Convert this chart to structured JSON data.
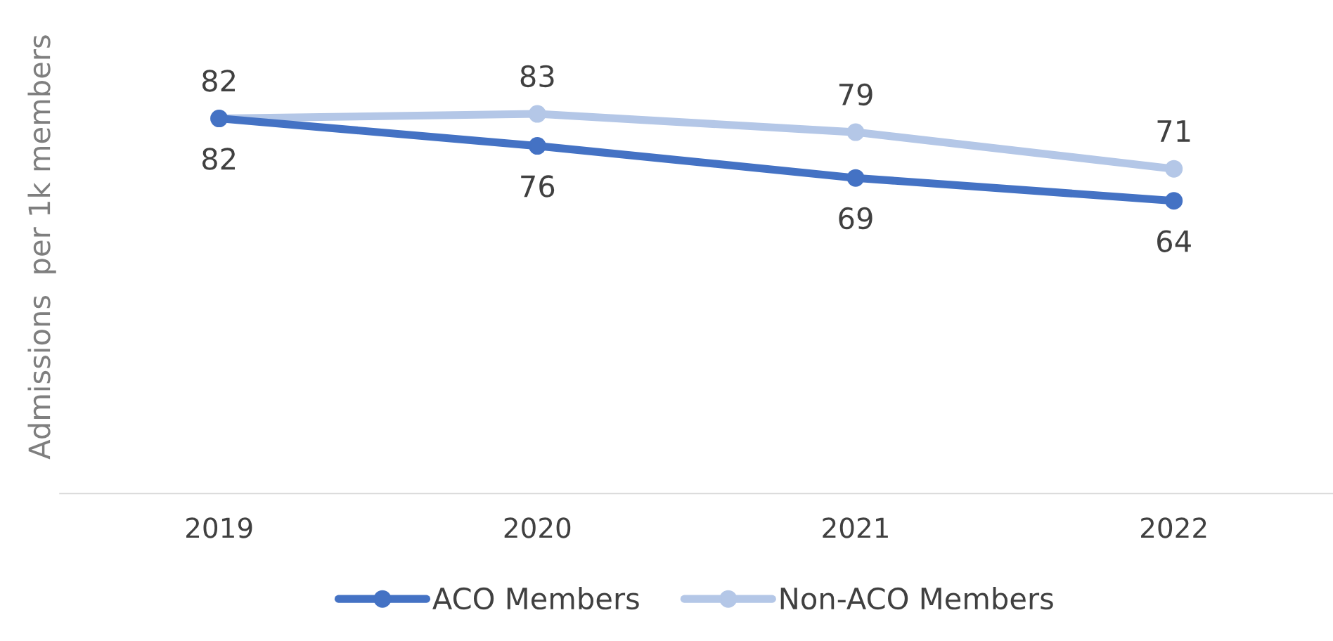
{
  "chart_data": {
    "type": "line",
    "ylabel": "Admissions  per 1k members",
    "categories": [
      "2019",
      "2020",
      "2021",
      "2022"
    ],
    "series": [
      {
        "name": "ACO Members",
        "color": "#4472c4",
        "values": [
          82,
          76,
          69,
          64
        ]
      },
      {
        "name": "Non-ACO Members",
        "color": "#b4c7e7",
        "values": [
          82,
          83,
          79,
          71
        ]
      }
    ],
    "tick_labels": "x",
    "data_labels": true,
    "legend": "bottom",
    "marker": "circle",
    "line_style": "solid",
    "grid": false
  }
}
